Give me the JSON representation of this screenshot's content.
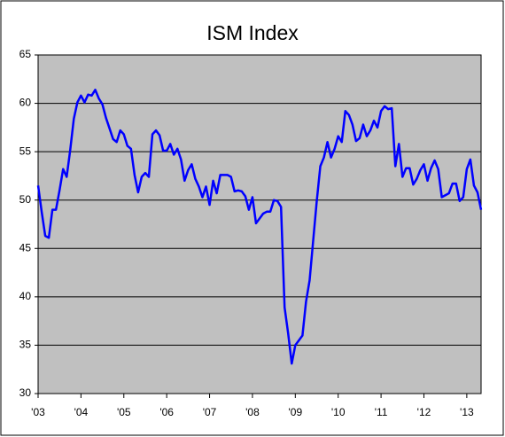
{
  "chart_data": {
    "type": "line",
    "title": "ISM Index",
    "categories": [
      "'03",
      null,
      null,
      null,
      null,
      null,
      null,
      null,
      null,
      null,
      null,
      null,
      "'04",
      null,
      null,
      null,
      null,
      null,
      null,
      null,
      null,
      null,
      null,
      null,
      "'05",
      null,
      null,
      null,
      null,
      null,
      null,
      null,
      null,
      null,
      null,
      null,
      "'06",
      null,
      null,
      null,
      null,
      null,
      null,
      null,
      null,
      null,
      null,
      null,
      "'07",
      null,
      null,
      null,
      null,
      null,
      null,
      null,
      null,
      null,
      null,
      null,
      "'08",
      null,
      null,
      null,
      null,
      null,
      null,
      null,
      null,
      null,
      null,
      null,
      "'09",
      null,
      null,
      null,
      null,
      null,
      null,
      null,
      null,
      null,
      null,
      null,
      "'10",
      null,
      null,
      null,
      null,
      null,
      null,
      null,
      null,
      null,
      null,
      null,
      "'11",
      null,
      null,
      null,
      null,
      null,
      null,
      null,
      null,
      null,
      null,
      null,
      "'12",
      null,
      null,
      null,
      null,
      null,
      null,
      null,
      null,
      null,
      null,
      null,
      "'13",
      null,
      null,
      null,
      null
    ],
    "values": [
      51.5,
      48.8,
      46.3,
      46.1,
      49.0,
      49.0,
      51.0,
      53.2,
      52.4,
      55.2,
      58.4,
      60.1,
      60.8,
      60.1,
      60.9,
      60.8,
      61.4,
      60.5,
      59.9,
      58.5,
      57.4,
      56.3,
      56.0,
      57.2,
      56.8,
      55.6,
      55.3,
      52.6,
      50.8,
      52.4,
      52.8,
      52.4,
      56.8,
      57.2,
      56.7,
      55.1,
      55.1,
      55.8,
      54.7,
      55.3,
      54.2,
      52.0,
      53.1,
      53.7,
      52.2,
      51.4,
      50.3,
      51.4,
      49.5,
      52.0,
      50.7,
      52.6,
      52.6,
      52.6,
      52.4,
      50.9,
      51.0,
      50.9,
      50.4,
      49.0,
      50.3,
      47.6,
      48.1,
      48.6,
      48.8,
      48.8,
      50.0,
      49.9,
      49.3,
      38.9,
      36.2,
      33.1,
      35.0,
      35.5,
      36.0,
      39.5,
      41.7,
      45.8,
      49.9,
      53.5,
      54.4,
      56.0,
      54.4,
      55.3,
      56.6,
      56.0,
      59.2,
      58.8,
      57.8,
      56.1,
      56.4,
      57.8,
      56.6,
      57.2,
      58.2,
      57.5,
      59.2,
      59.7,
      59.4,
      59.5,
      53.5,
      55.8,
      52.4,
      53.3,
      53.3,
      51.6,
      52.2,
      53.1,
      53.7,
      52.0,
      53.3,
      54.1,
      53.2,
      50.3,
      50.5,
      50.7,
      51.7,
      51.7,
      49.9,
      50.3,
      53.2,
      54.2,
      51.5,
      50.8,
      49.0
    ],
    "color": "#0000ff",
    "ylim": [
      30,
      65
    ],
    "yticks": [
      30,
      35,
      40,
      45,
      50,
      55,
      60,
      65
    ],
    "grid": true
  }
}
